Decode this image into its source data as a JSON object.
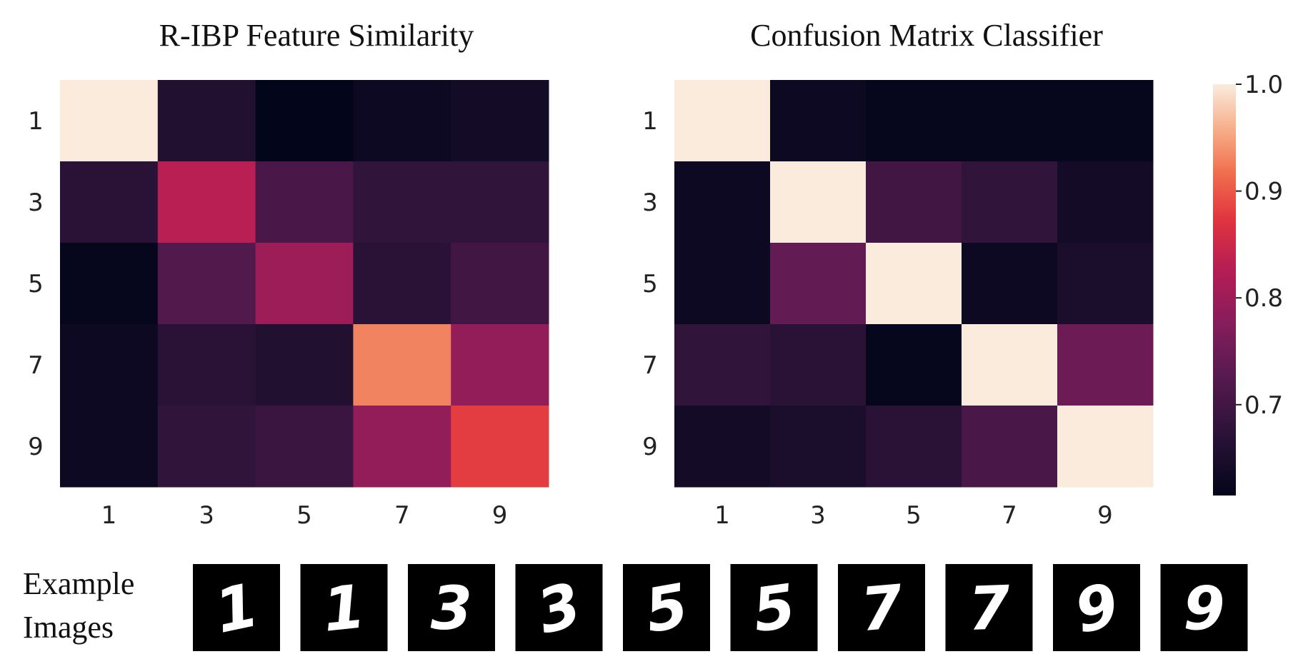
{
  "chart_data": [
    {
      "type": "heatmap",
      "title": "R-IBP Feature Similarity",
      "xlabel": "",
      "ylabel": "",
      "x_categories": [
        "1",
        "3",
        "5",
        "7",
        "9"
      ],
      "y_categories": [
        "1",
        "3",
        "5",
        "7",
        "9"
      ],
      "values": [
        [
          1.0,
          0.66,
          0.61,
          0.63,
          0.64
        ],
        [
          0.67,
          0.83,
          0.71,
          0.68,
          0.68
        ],
        [
          0.62,
          0.72,
          0.8,
          0.67,
          0.7
        ],
        [
          0.63,
          0.67,
          0.66,
          0.93,
          0.79
        ],
        [
          0.63,
          0.68,
          0.69,
          0.79,
          0.88
        ]
      ]
    },
    {
      "type": "heatmap",
      "title": "Confusion Matrix Classifier",
      "xlabel": "",
      "ylabel": "",
      "x_categories": [
        "1",
        "3",
        "5",
        "7",
        "9"
      ],
      "y_categories": [
        "1",
        "3",
        "5",
        "7",
        "9"
      ],
      "values": [
        [
          1.0,
          0.63,
          0.62,
          0.62,
          0.62
        ],
        [
          0.63,
          1.0,
          0.7,
          0.68,
          0.64
        ],
        [
          0.63,
          0.74,
          1.0,
          0.63,
          0.65
        ],
        [
          0.68,
          0.67,
          0.62,
          1.0,
          0.75
        ],
        [
          0.64,
          0.65,
          0.67,
          0.71,
          1.0
        ]
      ],
      "colorbar": {
        "range": [
          0.615,
          1.0
        ],
        "ticks": [
          "0.7",
          "0.8",
          "0.9",
          "1.0"
        ],
        "colormap": "rocket"
      }
    }
  ],
  "examples": {
    "label_line1": "Example",
    "label_line2": "Images",
    "digits": [
      "1",
      "1",
      "3",
      "3",
      "5",
      "5",
      "7",
      "7",
      "9",
      "9"
    ]
  }
}
